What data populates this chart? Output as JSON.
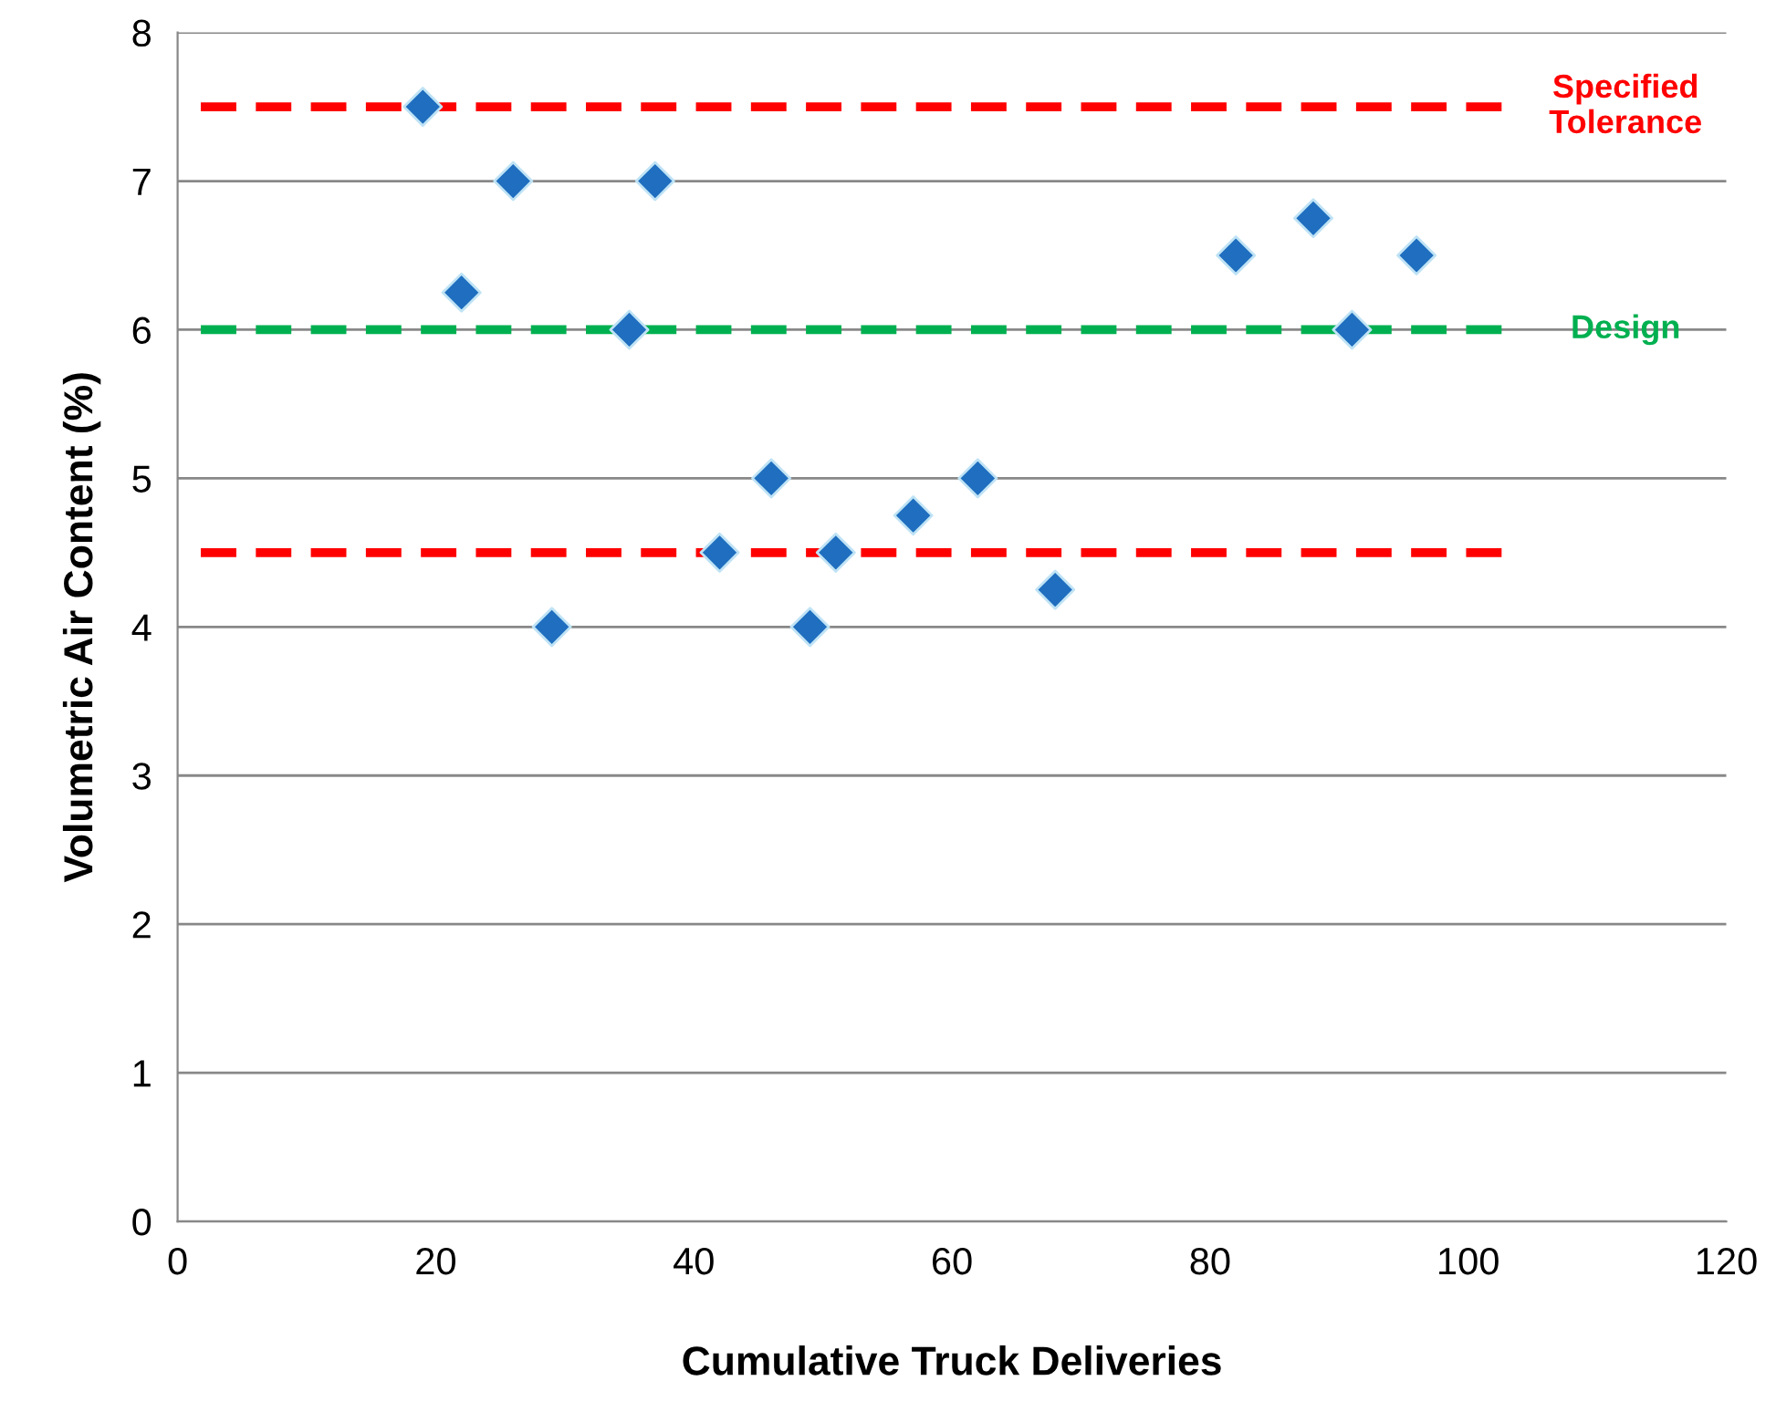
{
  "chart_data": {
    "type": "scatter",
    "xlabel": "Cumulative Truck Deliveries",
    "ylabel": "Volumetric Air Content (%)",
    "x": [
      19,
      22,
      26,
      29,
      35,
      37,
      42,
      46,
      49,
      51,
      57,
      62,
      68,
      82,
      88,
      91,
      96
    ],
    "series": [
      {
        "color": "#1f6ebf",
        "values": [
          7.5,
          6.25,
          7,
          4,
          6,
          7,
          4.5,
          5,
          4,
          4.5,
          4.75,
          5,
          4.25,
          6.5,
          6.75,
          6,
          6.5
        ]
      }
    ],
    "marker": "diamond",
    "xlim": [
      0,
      120
    ],
    "xticks": [
      0,
      20,
      40,
      60,
      80,
      100,
      120
    ],
    "ylim": [
      0,
      8
    ],
    "yticks": [
      0,
      1,
      2,
      3,
      4,
      5,
      6,
      7,
      8
    ],
    "grid": "y",
    "legend": false,
    "ref_lines": [
      {
        "axis": "y",
        "value": 7.5,
        "label": "Specified\nTolerance",
        "color": "#ff0000",
        "line_style": "dashed"
      },
      {
        "axis": "y",
        "value": 6,
        "label": "Design",
        "color": "#00b050",
        "line_style": "dashed"
      },
      {
        "axis": "y",
        "value": 4.5,
        "label": null,
        "color": "#ff0000",
        "line_style": "dashed"
      }
    ]
  }
}
